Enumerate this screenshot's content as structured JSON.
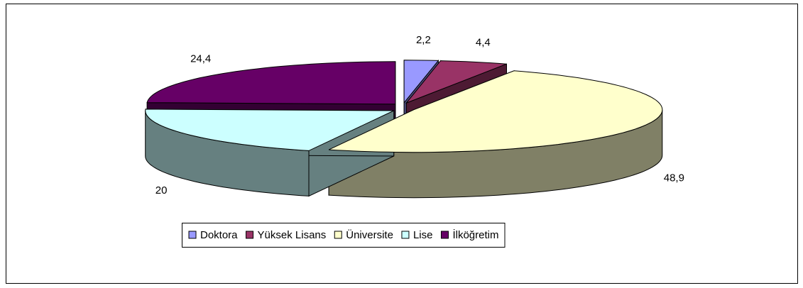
{
  "chart_data": {
    "type": "pie",
    "categories": [
      "Doktora",
      "Yüksek Lisans",
      "Üniversite",
      "Lise",
      "İlköğretim"
    ],
    "values": [
      2.2,
      4.4,
      48.9,
      20,
      24.4
    ],
    "value_labels": [
      "2,2",
      "4,4",
      "48,9",
      "20",
      "24,4"
    ],
    "colors": [
      "#9999ff",
      "#993366",
      "#ffffcc",
      "#ccffff",
      "#660066"
    ],
    "legend": "bottom"
  }
}
